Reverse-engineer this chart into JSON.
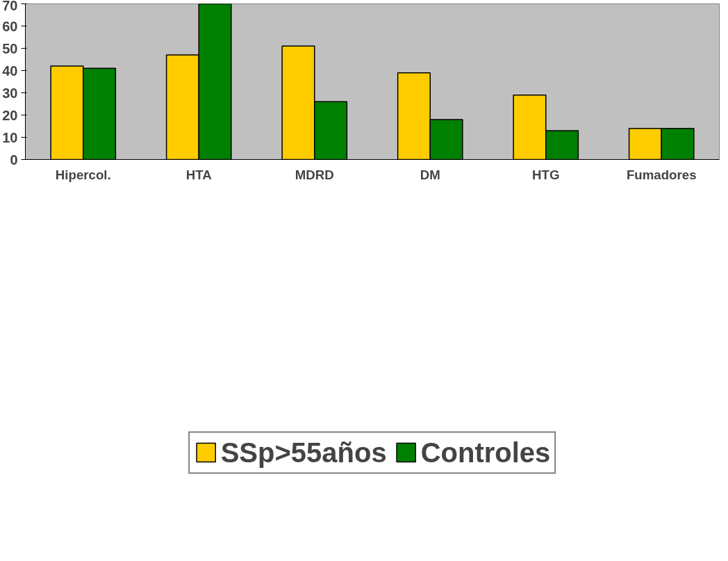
{
  "chart_data": {
    "type": "bar",
    "categories": [
      "Hipercol.",
      "HTA",
      "MDRD",
      "DM",
      "HTG",
      "Fumadores"
    ],
    "series": [
      {
        "name": "SSp>55años",
        "color": "#ffcc00",
        "values": [
          42,
          47,
          51,
          39,
          29,
          14
        ]
      },
      {
        "name": "Controles",
        "color": "#008000",
        "values": [
          41,
          70,
          26,
          18,
          13,
          14
        ]
      }
    ],
    "ylim": [
      0,
      70
    ],
    "yticks": [
      0,
      10,
      20,
      30,
      40,
      50,
      60,
      70
    ],
    "grid": false,
    "legend": "bottom"
  }
}
